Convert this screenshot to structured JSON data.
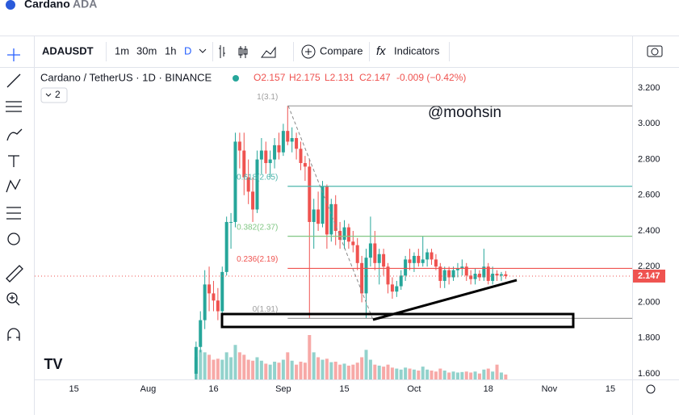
{
  "header": {
    "title": "Cardano",
    "ticker": "ADA"
  },
  "toolbar": {
    "symbol": "ADAUSDT",
    "intervals": [
      "1m",
      "30m",
      "1h",
      "D"
    ],
    "compare": "Compare",
    "indicators": "Indicators"
  },
  "legend": {
    "name": "Cardano / TetherUS · 1D · BINANCE",
    "open": "O2.157",
    "high": "H2.175",
    "low": "L2.131",
    "close": "C2.147",
    "change": "-0.009 (−0.42%)",
    "collapsed": "2"
  },
  "chart_data": {
    "type": "candlestick",
    "x": [
      224,
      225,
      226,
      227,
      228,
      229,
      230,
      231,
      232,
      233,
      234,
      235,
      236,
      237,
      238,
      239,
      240,
      241,
      242,
      243,
      244,
      245,
      246,
      247,
      248,
      249,
      250,
      251,
      252,
      253,
      254,
      255,
      256,
      257,
      258,
      259,
      260,
      261,
      262,
      263,
      264,
      265,
      266,
      267,
      268,
      269,
      270,
      271,
      272,
      273,
      274,
      275,
      276,
      277,
      278,
      279,
      280,
      281,
      282,
      283,
      284,
      285,
      286,
      287,
      288,
      289,
      290,
      291,
      292,
      293,
      294,
      295
    ],
    "open": [
      1.6,
      1.75,
      1.9,
      2.1,
      2.05,
      2.01,
      1.95,
      2.17,
      2.45,
      2.45,
      2.9,
      2.85,
      2.7,
      2.62,
      2.52,
      2.8,
      2.85,
      2.78,
      2.8,
      2.88,
      2.84,
      2.96,
      2.9,
      2.92,
      2.86,
      2.78,
      2.76,
      2.45,
      2.52,
      2.44,
      2.65,
      2.38,
      2.55,
      2.4,
      2.35,
      2.42,
      2.34,
      2.32,
      2.22,
      2.05,
      2.25,
      2.33,
      2.22,
      2.27,
      2.2,
      2.1,
      2.06,
      2.09,
      2.15,
      2.24,
      2.22,
      2.26,
      2.22,
      2.24,
      2.28,
      2.24,
      2.2,
      2.12,
      2.18,
      2.14,
      2.18,
      2.19,
      2.2,
      2.15,
      2.13,
      2.16,
      2.14,
      2.2,
      2.12,
      2.16,
      2.15,
      2.157
    ],
    "high": [
      1.78,
      1.95,
      2.18,
      2.2,
      2.12,
      2.08,
      2.2,
      2.48,
      2.5,
      2.95,
      2.95,
      2.95,
      2.8,
      2.7,
      2.85,
      2.92,
      2.9,
      2.85,
      2.92,
      2.95,
      3.0,
      3.1,
      2.98,
      2.95,
      2.9,
      2.82,
      2.8,
      2.58,
      2.62,
      2.68,
      2.66,
      2.58,
      2.6,
      2.45,
      2.46,
      2.44,
      2.4,
      2.36,
      2.26,
      2.3,
      2.48,
      2.4,
      2.3,
      2.3,
      2.22,
      2.14,
      2.12,
      2.18,
      2.26,
      2.3,
      2.28,
      2.3,
      2.37,
      2.3,
      2.3,
      2.27,
      2.22,
      2.2,
      2.2,
      2.2,
      2.22,
      2.24,
      2.22,
      2.18,
      2.19,
      2.18,
      2.3,
      2.22,
      2.2,
      2.18,
      2.17,
      2.175
    ],
    "low": [
      1.56,
      1.72,
      1.85,
      1.95,
      1.95,
      1.9,
      1.93,
      2.15,
      2.3,
      2.42,
      2.75,
      2.6,
      2.55,
      2.45,
      2.5,
      2.72,
      2.72,
      2.7,
      2.75,
      2.8,
      2.82,
      2.88,
      2.84,
      2.8,
      2.74,
      2.68,
      1.91,
      2.3,
      2.4,
      2.42,
      2.3,
      2.34,
      2.32,
      2.3,
      2.3,
      2.3,
      2.28,
      2.18,
      2.0,
      1.91,
      2.2,
      2.18,
      2.1,
      2.15,
      2.05,
      2.02,
      2.03,
      2.07,
      2.12,
      2.18,
      2.17,
      2.2,
      2.2,
      2.2,
      2.21,
      2.18,
      2.08,
      2.08,
      2.1,
      2.12,
      2.14,
      2.15,
      2.12,
      2.1,
      2.1,
      2.12,
      2.12,
      2.1,
      2.1,
      2.12,
      2.12,
      2.131
    ],
    "close": [
      1.75,
      1.9,
      2.1,
      2.05,
      2.01,
      1.95,
      2.17,
      2.45,
      2.45,
      2.9,
      2.85,
      2.7,
      2.62,
      2.52,
      2.8,
      2.85,
      2.78,
      2.8,
      2.88,
      2.84,
      2.96,
      2.9,
      2.92,
      2.86,
      2.78,
      2.76,
      2.45,
      2.52,
      2.44,
      2.65,
      2.38,
      2.55,
      2.4,
      2.35,
      2.42,
      2.34,
      2.32,
      2.22,
      2.05,
      2.25,
      2.33,
      2.22,
      2.27,
      2.2,
      2.1,
      2.06,
      2.09,
      2.15,
      2.24,
      2.22,
      2.26,
      2.22,
      2.24,
      2.28,
      2.24,
      2.2,
      2.12,
      2.18,
      2.14,
      2.18,
      2.19,
      2.2,
      2.15,
      2.13,
      2.16,
      2.14,
      2.2,
      2.12,
      2.16,
      2.15,
      2.157,
      2.147
    ],
    "volume": [
      45,
      60,
      55,
      50,
      40,
      42,
      40,
      55,
      45,
      70,
      55,
      50,
      40,
      38,
      45,
      38,
      32,
      30,
      36,
      34,
      40,
      55,
      38,
      30,
      36,
      34,
      90,
      55,
      45,
      40,
      42,
      35,
      36,
      30,
      32,
      28,
      30,
      34,
      45,
      60,
      40,
      30,
      28,
      26,
      30,
      24,
      22,
      20,
      24,
      22,
      20,
      18,
      26,
      20,
      18,
      16,
      22,
      18,
      14,
      16,
      14,
      15,
      16,
      14,
      16,
      12,
      20,
      22,
      16,
      30,
      14,
      10
    ],
    "up_color": "#26a69a",
    "down_color": "#ef5350",
    "xlim": [
      187,
      324
    ],
    "ylim": [
      1.568,
      3.318
    ],
    "xticks": [
      {
        "value": 196,
        "label": "15"
      },
      {
        "value": 213,
        "label": "Aug"
      },
      {
        "value": 228,
        "label": "16"
      },
      {
        "value": 244,
        "label": "Sep"
      },
      {
        "value": 258,
        "label": "15"
      },
      {
        "value": 274,
        "label": "Oct"
      },
      {
        "value": 291,
        "label": "18"
      },
      {
        "value": 305,
        "label": "Nov"
      },
      {
        "value": 319,
        "label": "15"
      }
    ],
    "yticks": [
      {
        "value": 1.6,
        "label": "1.600"
      },
      {
        "value": 1.8,
        "label": "1.800"
      },
      {
        "value": 2,
        "label": "2.000"
      },
      {
        "value": 2.2,
        "label": "2.200"
      },
      {
        "value": 2.4,
        "label": "2.400"
      },
      {
        "value": 2.6,
        "label": "2.600"
      },
      {
        "value": 2.8,
        "label": "2.800"
      },
      {
        "value": 3,
        "label": "3.000"
      },
      {
        "value": 3.2,
        "label": "3.200"
      }
    ],
    "fib_start": 245,
    "fib_levels": [
      {
        "label": "1(3.1)",
        "value": 3.1,
        "color": "#9e9e9e"
      },
      {
        "label": "0.618(2.65)",
        "value": 2.65,
        "color": "#4db6ac"
      },
      {
        "label": "0.382(2.37)",
        "value": 2.37,
        "color": "#81c784"
      },
      {
        "label": "0.236(2.19)",
        "value": 2.19,
        "color": "#ef5350"
      },
      {
        "label": "0(1.91)",
        "value": 1.91,
        "color": "#9e9e9e"
      }
    ],
    "watermark": "@moohsin"
  }
}
